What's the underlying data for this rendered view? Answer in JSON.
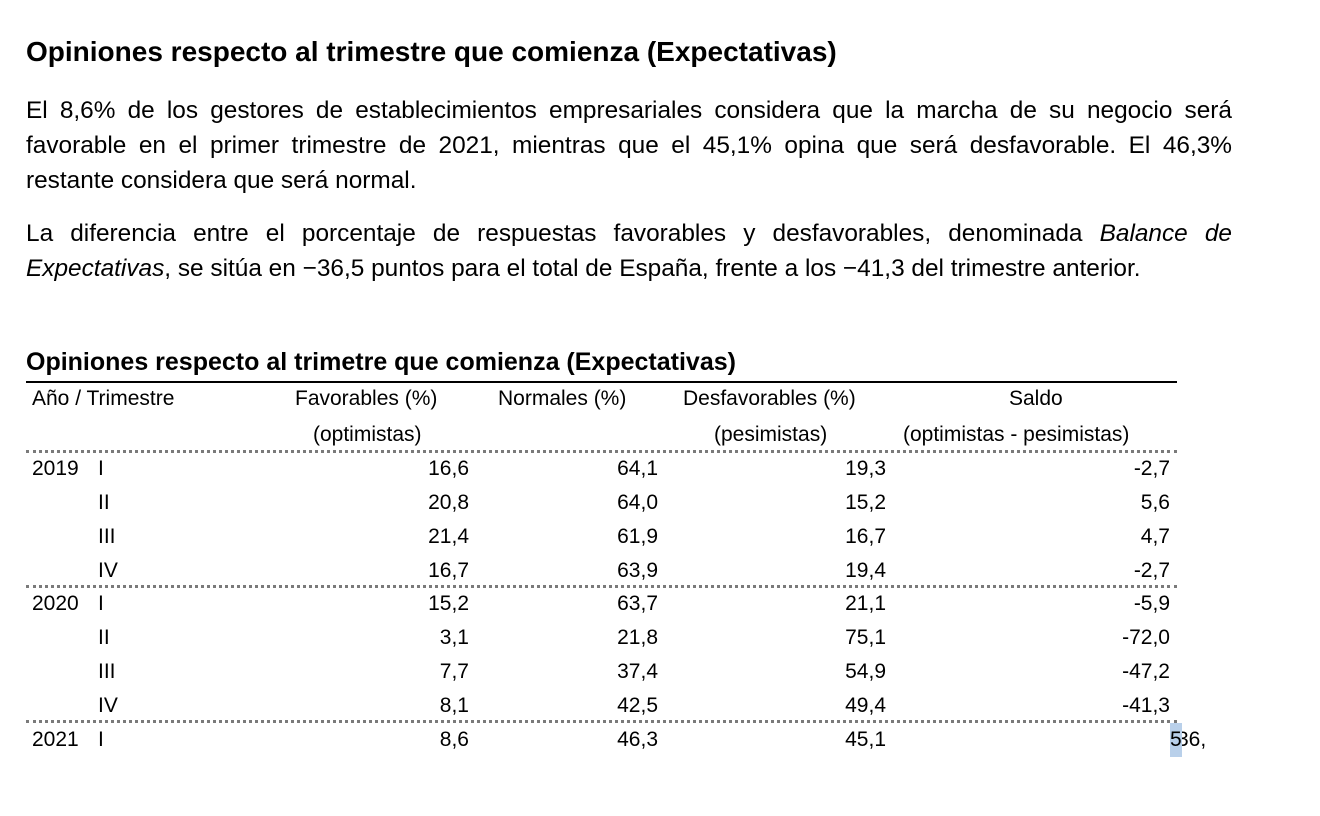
{
  "section": {
    "title": "Opiniones respecto al trimestre que comienza (Expectativas)",
    "para1": "El 8,6% de los gestores de establecimientos empresariales considera que la marcha de su negocio será favorable en el primer trimestre de 2021, mientras que el 45,1% opina que será desfavorable. El 46,3% restante considera que será normal.",
    "para2_a": "La diferencia entre el porcentaje de respuestas favorables y desfavorables, denominada ",
    "para2_italic": "Balance de Expectativas",
    "para2_b": ", se sitúa en −36,5 puntos para el total de España, frente a los −41,3 del trimestre anterior."
  },
  "table": {
    "title": "Opiniones respecto al trimetre que comienza (Expectativas)",
    "headers": {
      "period": "Año / Trimestre",
      "fav": "Favorables (%)",
      "fav_sub": "(optimistas)",
      "nor": "Normales (%)",
      "des": "Desfavorables (%)",
      "des_sub": "(pesimistas)",
      "sal": "Saldo",
      "sal_sub": "(optimistas - pesimistas)"
    },
    "rows": [
      {
        "year": "2019",
        "q": "I",
        "fav": "16,6",
        "nor": "64,1",
        "des": "19,3",
        "sal": "-2,7"
      },
      {
        "year": "",
        "q": "II",
        "fav": "20,8",
        "nor": "64,0",
        "des": "15,2",
        "sal": "5,6"
      },
      {
        "year": "",
        "q": "III",
        "fav": "21,4",
        "nor": "61,9",
        "des": "16,7",
        "sal": "4,7"
      },
      {
        "year": "",
        "q": "IV",
        "fav": "16,7",
        "nor": "63,9",
        "des": "19,4",
        "sal": "-2,7"
      },
      {
        "year": "2020",
        "q": "I",
        "fav": "15,2",
        "nor": "63,7",
        "des": "21,1",
        "sal": "-5,9"
      },
      {
        "year": "",
        "q": "II",
        "fav": "3,1",
        "nor": "21,8",
        "des": "75,1",
        "sal": "-72,0"
      },
      {
        "year": "",
        "q": "III",
        "fav": "7,7",
        "nor": "37,4",
        "des": "54,9",
        "sal": "-47,2"
      },
      {
        "year": "",
        "q": "IV",
        "fav": "8,1",
        "nor": "42,5",
        "des": "49,4",
        "sal": "-41,3"
      },
      {
        "year": "2021",
        "q": "I",
        "fav": "8,6",
        "nor": "46,3",
        "des": "45,1",
        "sal_a": "-36,",
        "sal_b": "5"
      }
    ]
  }
}
